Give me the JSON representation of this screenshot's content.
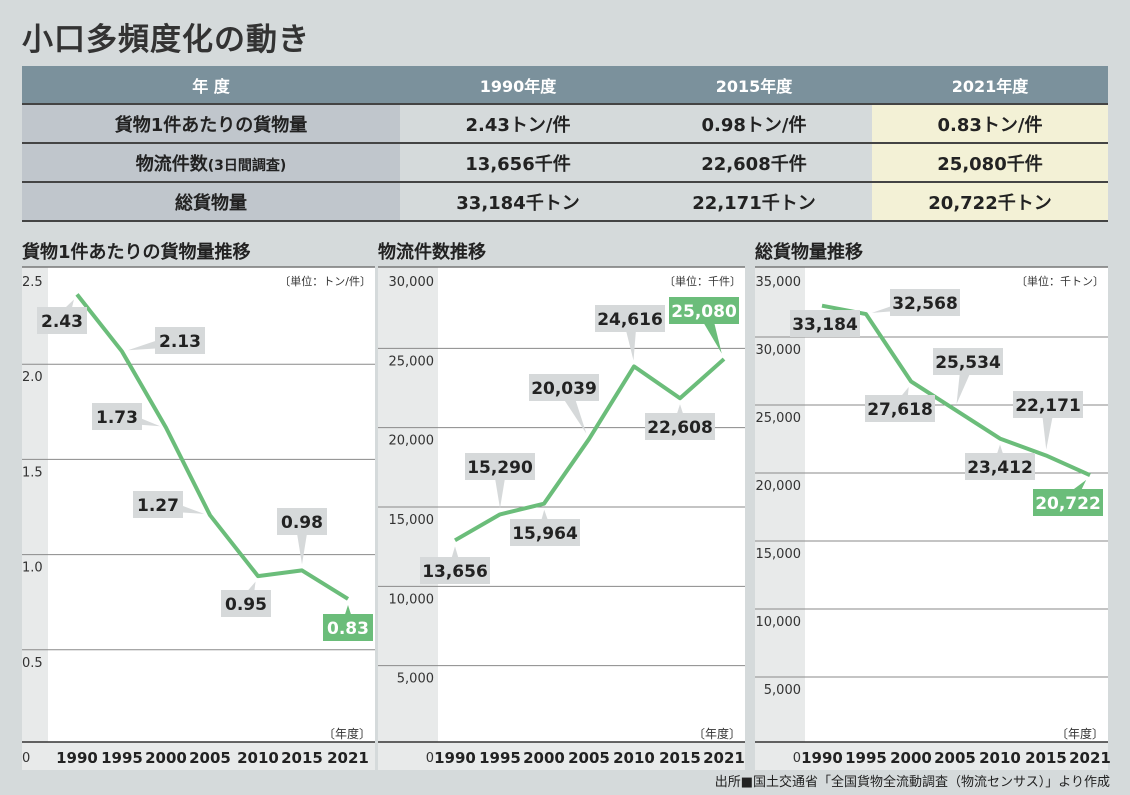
{
  "title": "小口多頻度化の動き",
  "table": {
    "headers": [
      "年 度",
      "1990年度",
      "2015年度",
      "2021年度"
    ],
    "rows": [
      {
        "label": "貨物1件あたりの貨物量",
        "label_note": "",
        "values": [
          "2.43トン/件",
          "0.98トン/件",
          "0.83トン/件"
        ]
      },
      {
        "label": "物流件数",
        "label_note": "(3日間調査)",
        "values": [
          "13,656千件",
          "22,608千件",
          "25,080千件"
        ]
      },
      {
        "label": "総貨物量",
        "label_note": "",
        "values": [
          "33,184千トン",
          "22,171千トン",
          "20,722千トン"
        ]
      }
    ]
  },
  "chart_data": [
    {
      "type": "line",
      "title": "貨物1件あたりの貨物量推移",
      "unit": "〔単位：トン/件〕",
      "xlabel": "〔年度〕",
      "categories": [
        "1990",
        "1995",
        "2000",
        "2005",
        "2010",
        "2015",
        "2021"
      ],
      "values": [
        2.43,
        2.13,
        1.73,
        1.27,
        0.95,
        0.98,
        0.83
      ],
      "labels": [
        "2.43",
        "2.13",
        "1.73",
        "1.27",
        "0.95",
        "0.98",
        "0.83"
      ],
      "ylim": [
        0,
        2.5
      ],
      "yticks": [
        0,
        0.5,
        1.0,
        1.5,
        2.0,
        2.5
      ],
      "ytick_labels": [
        "0",
        "0.5",
        "1.0",
        "1.5",
        "2.0",
        "2.5"
      ]
    },
    {
      "type": "line",
      "title": "物流件数推移",
      "unit": "〔単位：千件〕",
      "xlabel": "〔年度〕",
      "categories": [
        "1990",
        "1995",
        "2000",
        "2005",
        "2010",
        "2015",
        "2021"
      ],
      "values": [
        13656,
        15290,
        15964,
        20039,
        24616,
        22608,
        25080
      ],
      "labels": [
        "13,656",
        "15,290",
        "15,964",
        "20,039",
        "24,616",
        "22,608",
        "25,080"
      ],
      "ylim": [
        0,
        30000
      ],
      "yticks": [
        0,
        5000,
        10000,
        15000,
        20000,
        25000,
        30000
      ],
      "ytick_labels": [
        "0",
        "5,000",
        "10,000",
        "15,000",
        "20,000",
        "25,000",
        "30,000"
      ]
    },
    {
      "type": "line",
      "title": "総貨物量推移",
      "unit": "〔単位：千トン〕",
      "xlabel": "〔年度〕",
      "categories": [
        "1990",
        "1995",
        "2000",
        "2005",
        "2010",
        "2015",
        "2021"
      ],
      "values": [
        33184,
        32568,
        27618,
        25534,
        23412,
        22171,
        20722
      ],
      "labels": [
        "33,184",
        "32,568",
        "27,618",
        "25,534",
        "23,412",
        "22,171",
        "20,722"
      ],
      "ylim": [
        0,
        35000
      ],
      "yticks": [
        0,
        5000,
        10000,
        15000,
        20000,
        25000,
        30000,
        35000
      ],
      "ytick_labels": [
        "0",
        "5,000",
        "10,000",
        "15,000",
        "20,000",
        "25,000",
        "30,000",
        "35,000"
      ]
    }
  ],
  "colors": {
    "line": "#6bbd7a",
    "highlight_label": "#6bbd7a",
    "callout": "#d6d9da"
  },
  "footer": "出所■国土交通省「全国貨物全流動調査（物流センサス）」より作成"
}
